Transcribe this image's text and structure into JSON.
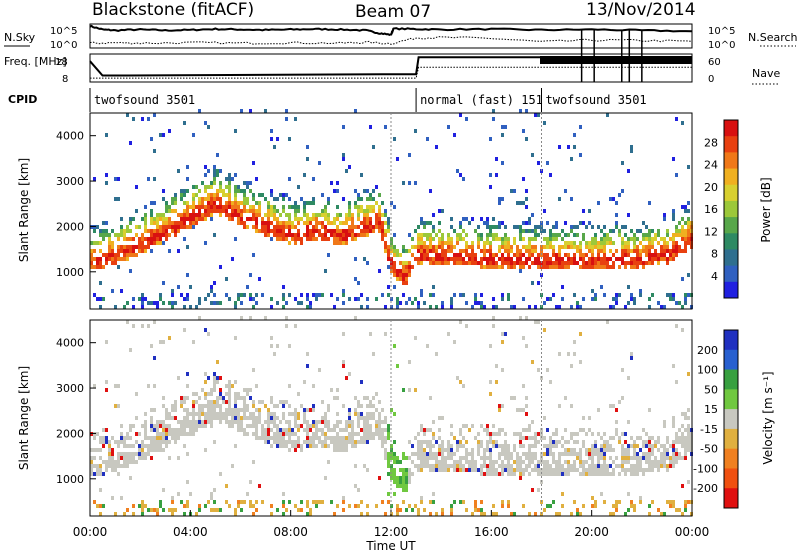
{
  "header": {
    "station": "Blackstone (fitACF)",
    "beam": "Beam 07",
    "date": "13/Nov/2014"
  },
  "chart_data": [
    {
      "type": "line",
      "panel": "noise",
      "left_label": "N.Sky",
      "right_label": "N.Search",
      "left_ticks": [
        "10^5",
        "10^0"
      ],
      "right_ticks": [
        "10^5",
        "10^0"
      ],
      "series": [
        {
          "name": "N.Sky",
          "x": [
            0,
            0.5,
            1,
            2,
            3,
            4,
            5,
            6,
            7,
            8,
            9,
            10,
            11,
            11.5,
            12,
            12.1,
            13,
            14,
            16,
            18,
            20,
            22,
            24
          ],
          "values": [
            5.0,
            4.2,
            4.0,
            4.2,
            4.0,
            4.1,
            4.3,
            4.2,
            4.1,
            4.2,
            4.3,
            4.2,
            4.0,
            3.4,
            3.0,
            4.4,
            4.3,
            4.2,
            4.3,
            4.1,
            4.2,
            4.0,
            3.8
          ]
        },
        {
          "name": "N.Search",
          "x": [
            0,
            1,
            2,
            4,
            6,
            8,
            10,
            11,
            12,
            13,
            14,
            16,
            18,
            20,
            22,
            24
          ],
          "values": [
            1.1,
            1.2,
            1.1,
            1.2,
            1.1,
            1.2,
            1.1,
            1.3,
            1.0,
            2.3,
            2.4,
            2.2,
            1.4,
            1.8,
            1.7,
            1.5
          ]
        }
      ]
    },
    {
      "type": "line",
      "panel": "frequency",
      "left_label": "Freq. [MHz]",
      "right_label": "Nave",
      "left_ticks": [
        "18",
        "8"
      ],
      "right_ticks": [
        "60",
        "0"
      ],
      "series": [
        {
          "name": "Freq.",
          "x": [
            0,
            0.5,
            1,
            12,
            13,
            13.1,
            18,
            24
          ],
          "values": [
            16,
            10.5,
            10.5,
            11,
            11,
            17.5,
            17.5,
            17.5
          ]
        },
        {
          "name": "Nave",
          "x": [
            0,
            12,
            13,
            13.1,
            18,
            24
          ],
          "values": [
            9,
            9,
            9,
            34,
            34,
            34
          ]
        }
      ]
    },
    {
      "type": "table",
      "panel": "cpid",
      "label": "CPID",
      "segments": [
        {
          "start": 0,
          "end": 13,
          "text": "twofsound 3501"
        },
        {
          "start": 13,
          "end": 18,
          "text": "normal (fast) 151"
        },
        {
          "start": 18,
          "end": 24,
          "text": "twofsound 3501"
        }
      ]
    },
    {
      "type": "heatmap",
      "panel": "power",
      "ylabel": "Slant Range [km]",
      "ylim": [
        180,
        4500
      ],
      "yticks": [
        1000,
        2000,
        3000,
        4000
      ],
      "colorbar_label": "Power [dB]",
      "colorbar_ticks": [
        4,
        8,
        12,
        16,
        20,
        24,
        28
      ],
      "colorbar_range": [
        0,
        32
      ],
      "colors": [
        "#2020e0",
        "#3060c0",
        "#2f6f8f",
        "#2e8a63",
        "#58a74a",
        "#9cc83a",
        "#d8d030",
        "#f0b020",
        "#f07818",
        "#e84010",
        "#d81010"
      ],
      "ridge": {
        "x": [
          0,
          1,
          2,
          3,
          4,
          5,
          6,
          7,
          8,
          9,
          10,
          11,
          11.5,
          12,
          12.5,
          13,
          14,
          16,
          18,
          20,
          22,
          23,
          24
        ],
        "y_km": [
          1100,
          1300,
          1500,
          1800,
          2100,
          2400,
          2100,
          1900,
          1700,
          1800,
          1700,
          1900,
          2000,
          1000,
          800,
          1300,
          1250,
          1200,
          1150,
          1150,
          1200,
          1300,
          1650
        ]
      }
    },
    {
      "type": "heatmap",
      "panel": "velocity",
      "xlabel": "Time UT",
      "ylabel": "Slant Range [km]",
      "ylim": [
        180,
        4500
      ],
      "yticks": [
        1000,
        2000,
        3000,
        4000
      ],
      "x_ticks": [
        "00:00",
        "04:00",
        "08:00",
        "12:00",
        "16:00",
        "20:00",
        "00:00"
      ],
      "colorbar_label": "Velocity [m s⁻¹]",
      "colorbar_ticks": [
        "200",
        "100",
        "50",
        "15",
        "-15",
        "-50",
        "-100",
        "-200"
      ],
      "colors": [
        "#2030c0",
        "#2860d0",
        "#38a040",
        "#70c840",
        "#c8c8c0",
        "#e0b040",
        "#f08020",
        "#f05010",
        "#e01010"
      ],
      "ground_scatter_color": "#c8c8c0"
    }
  ]
}
